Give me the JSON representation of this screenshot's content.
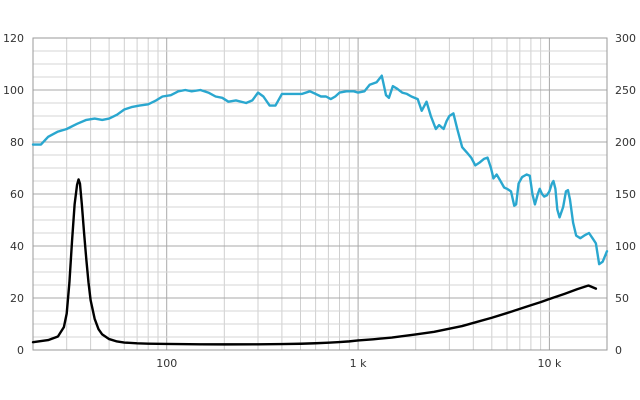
{
  "chart_data": {
    "type": "line",
    "x_scale": "log",
    "xlim": [
      20,
      20000
    ],
    "x_tick_labels": [
      {
        "value": 100,
        "label": "100"
      },
      {
        "value": 1000,
        "label": "1 k"
      },
      {
        "value": 10000,
        "label": "10 k"
      }
    ],
    "y_left": {
      "lim": [
        0,
        120
      ],
      "ticks": [
        "0",
        "20",
        "40",
        "60",
        "80",
        "100",
        "120"
      ]
    },
    "y_right": {
      "lim": [
        0,
        300
      ],
      "ticks": [
        "0",
        "50",
        "100",
        "150",
        "200",
        "250",
        "300"
      ]
    },
    "grid": true,
    "series": [
      {
        "axis": "left",
        "color": "#2aa7cf",
        "points": [
          [
            20,
            79
          ],
          [
            22,
            79
          ],
          [
            24,
            82
          ],
          [
            27,
            84
          ],
          [
            30,
            85
          ],
          [
            34,
            87
          ],
          [
            38,
            88.5
          ],
          [
            42,
            89
          ],
          [
            46,
            88.5
          ],
          [
            50,
            89
          ],
          [
            55,
            90.5
          ],
          [
            60,
            92.5
          ],
          [
            66,
            93.5
          ],
          [
            72,
            94
          ],
          [
            80,
            94.5
          ],
          [
            88,
            96
          ],
          [
            95,
            97.5
          ],
          [
            105,
            98
          ],
          [
            115,
            99.5
          ],
          [
            125,
            100
          ],
          [
            135,
            99.5
          ],
          [
            150,
            100
          ],
          [
            165,
            99
          ],
          [
            180,
            97.5
          ],
          [
            195,
            97
          ],
          [
            210,
            95.5
          ],
          [
            230,
            96
          ],
          [
            260,
            95
          ],
          [
            280,
            96
          ],
          [
            300,
            99
          ],
          [
            320,
            97.5
          ],
          [
            345,
            94
          ],
          [
            370,
            94
          ],
          [
            400,
            98.5
          ],
          [
            430,
            98.5
          ],
          [
            470,
            98.5
          ],
          [
            510,
            98.5
          ],
          [
            560,
            99.5
          ],
          [
            600,
            98.5
          ],
          [
            640,
            97.5
          ],
          [
            680,
            97.5
          ],
          [
            720,
            96.5
          ],
          [
            760,
            97.5
          ],
          [
            800,
            99
          ],
          [
            870,
            99.5
          ],
          [
            950,
            99.5
          ],
          [
            1000,
            99
          ],
          [
            1080,
            99.5
          ],
          [
            1150,
            102
          ],
          [
            1250,
            103
          ],
          [
            1330,
            105.5
          ],
          [
            1400,
            98
          ],
          [
            1450,
            97
          ],
          [
            1520,
            101.5
          ],
          [
            1600,
            100.5
          ],
          [
            1700,
            99
          ],
          [
            1800,
            98.5
          ],
          [
            1900,
            97.5
          ],
          [
            2050,
            96.5
          ],
          [
            2150,
            92
          ],
          [
            2280,
            95.5
          ],
          [
            2400,
            90
          ],
          [
            2550,
            85
          ],
          [
            2650,
            86.5
          ],
          [
            2800,
            85
          ],
          [
            2900,
            88
          ],
          [
            3000,
            90
          ],
          [
            3150,
            91
          ],
          [
            3300,
            85
          ],
          [
            3500,
            78
          ],
          [
            3700,
            76
          ],
          [
            3900,
            74
          ],
          [
            4100,
            71
          ],
          [
            4300,
            72
          ],
          [
            4550,
            73.5
          ],
          [
            4750,
            74
          ],
          [
            4950,
            70
          ],
          [
            5100,
            66
          ],
          [
            5300,
            67.5
          ],
          [
            5550,
            65
          ],
          [
            5800,
            62.5
          ],
          [
            6000,
            62
          ],
          [
            6300,
            61
          ],
          [
            6550,
            55.5
          ],
          [
            6700,
            56
          ],
          [
            6900,
            64
          ],
          [
            7200,
            66.5
          ],
          [
            7600,
            67.5
          ],
          [
            7900,
            67
          ],
          [
            8150,
            60
          ],
          [
            8400,
            56
          ],
          [
            8700,
            60
          ],
          [
            8900,
            62
          ],
          [
            9150,
            60
          ],
          [
            9400,
            59
          ],
          [
            9700,
            59.5
          ],
          [
            10000,
            61
          ],
          [
            10300,
            64
          ],
          [
            10500,
            65
          ],
          [
            10750,
            62
          ],
          [
            11000,
            54
          ],
          [
            11300,
            51
          ],
          [
            11800,
            55
          ],
          [
            12200,
            61
          ],
          [
            12500,
            61.5
          ],
          [
            12800,
            58
          ],
          [
            13300,
            49
          ],
          [
            13800,
            44
          ],
          [
            14500,
            43
          ],
          [
            15200,
            44
          ],
          [
            16100,
            45
          ],
          [
            16800,
            43
          ],
          [
            17500,
            41
          ],
          [
            18200,
            33
          ],
          [
            19000,
            34
          ],
          [
            20000,
            38
          ]
        ]
      },
      {
        "axis": "right",
        "color": "#000000",
        "points": [
          [
            20,
            7.5
          ],
          [
            24,
            9.5
          ],
          [
            27,
            13
          ],
          [
            29,
            22
          ],
          [
            30,
            35
          ],
          [
            31,
            65
          ],
          [
            32,
            105
          ],
          [
            33,
            140
          ],
          [
            34,
            159
          ],
          [
            34.6,
            164
          ],
          [
            35.2,
            160
          ],
          [
            36,
            140
          ],
          [
            37,
            112
          ],
          [
            38,
            87
          ],
          [
            39,
            65
          ],
          [
            40,
            48
          ],
          [
            42,
            30
          ],
          [
            44,
            20
          ],
          [
            46,
            15
          ],
          [
            50,
            10.5
          ],
          [
            55,
            8.2
          ],
          [
            60,
            7.2
          ],
          [
            70,
            6.4
          ],
          [
            80,
            6.1
          ],
          [
            100,
            5.8
          ],
          [
            150,
            5.5
          ],
          [
            200,
            5.4
          ],
          [
            300,
            5.5
          ],
          [
            400,
            5.7
          ],
          [
            500,
            6
          ],
          [
            600,
            6.5
          ],
          [
            700,
            7
          ],
          [
            800,
            7.6
          ],
          [
            900,
            8.3
          ],
          [
            1000,
            9.2
          ],
          [
            1200,
            10.3
          ],
          [
            1500,
            12
          ],
          [
            2000,
            15
          ],
          [
            2500,
            17.5
          ],
          [
            3000,
            20.5
          ],
          [
            3500,
            23
          ],
          [
            4000,
            26
          ],
          [
            5000,
            31
          ],
          [
            6000,
            35.5
          ],
          [
            7000,
            39.5
          ],
          [
            8000,
            43
          ],
          [
            9000,
            46
          ],
          [
            10000,
            49
          ],
          [
            12000,
            54
          ],
          [
            14000,
            58.5
          ],
          [
            16000,
            62
          ],
          [
            17500,
            59
          ]
        ]
      }
    ]
  }
}
